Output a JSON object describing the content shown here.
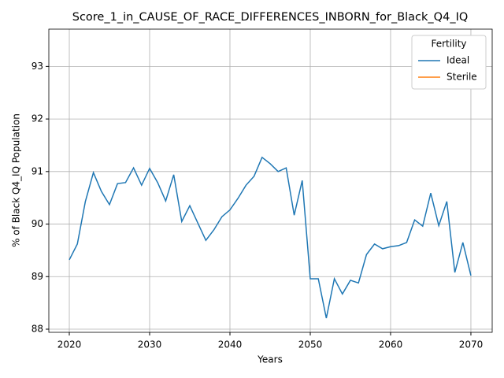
{
  "chart_data": {
    "type": "line",
    "title": "Score_1_in_CAUSE_OF_RACE_DIFFERENCES_INBORN_for_Black_Q4_IQ",
    "xlabel": "Years",
    "ylabel": "% of Black Q4_IQ Population",
    "x": [
      2020,
      2021,
      2022,
      2023,
      2024,
      2025,
      2026,
      2027,
      2028,
      2029,
      2030,
      2031,
      2032,
      2033,
      2034,
      2035,
      2036,
      2037,
      2038,
      2039,
      2040,
      2041,
      2042,
      2043,
      2044,
      2045,
      2046,
      2047,
      2048,
      2049,
      2050,
      2051,
      2052,
      2053,
      2054,
      2055,
      2056,
      2057,
      2058,
      2059,
      2060,
      2061,
      2062,
      2063,
      2064,
      2065,
      2066,
      2067,
      2068,
      2069,
      2070
    ],
    "series": [
      {
        "name": "Ideal",
        "color": "#1f77b4",
        "values": [
          89.32,
          89.62,
          90.43,
          90.98,
          90.62,
          90.37,
          90.77,
          90.79,
          91.07,
          90.74,
          91.06,
          90.79,
          90.44,
          90.94,
          90.05,
          90.35,
          90.02,
          89.69,
          89.89,
          90.14,
          90.27,
          90.49,
          90.74,
          90.91,
          91.27,
          91.15,
          91.0,
          91.07,
          90.17,
          90.83,
          88.96,
          88.96,
          88.21,
          88.96,
          88.67,
          88.93,
          88.88,
          89.42,
          89.62,
          89.53,
          89.57,
          89.59,
          89.65,
          90.08,
          89.96,
          90.59,
          89.97,
          90.43,
          89.08,
          89.65,
          89.02
        ]
      },
      {
        "name": "Sterile",
        "color": "#ff7f0e",
        "values": [
          null,
          null,
          null,
          null,
          null,
          null,
          null,
          null,
          null,
          null,
          null,
          null,
          null,
          null,
          null,
          null,
          null,
          null,
          null,
          null,
          null,
          null,
          null,
          null,
          null,
          null,
          null,
          null,
          null,
          null,
          null,
          null,
          null,
          null,
          null,
          null,
          null,
          null,
          null,
          null,
          null,
          null,
          null,
          null,
          null,
          null,
          null,
          null,
          null,
          null,
          null
        ]
      }
    ],
    "legend_title": "Fertility",
    "legend": "upper right",
    "xlim": [
      2017.45,
      2072.65
    ],
    "xticks": [
      2020,
      2030,
      2040,
      2050,
      2060,
      2070
    ],
    "ylim": [
      87.94,
      93.71
    ],
    "yticks": [
      88,
      89,
      90,
      91,
      92,
      93
    ],
    "grid": true
  }
}
